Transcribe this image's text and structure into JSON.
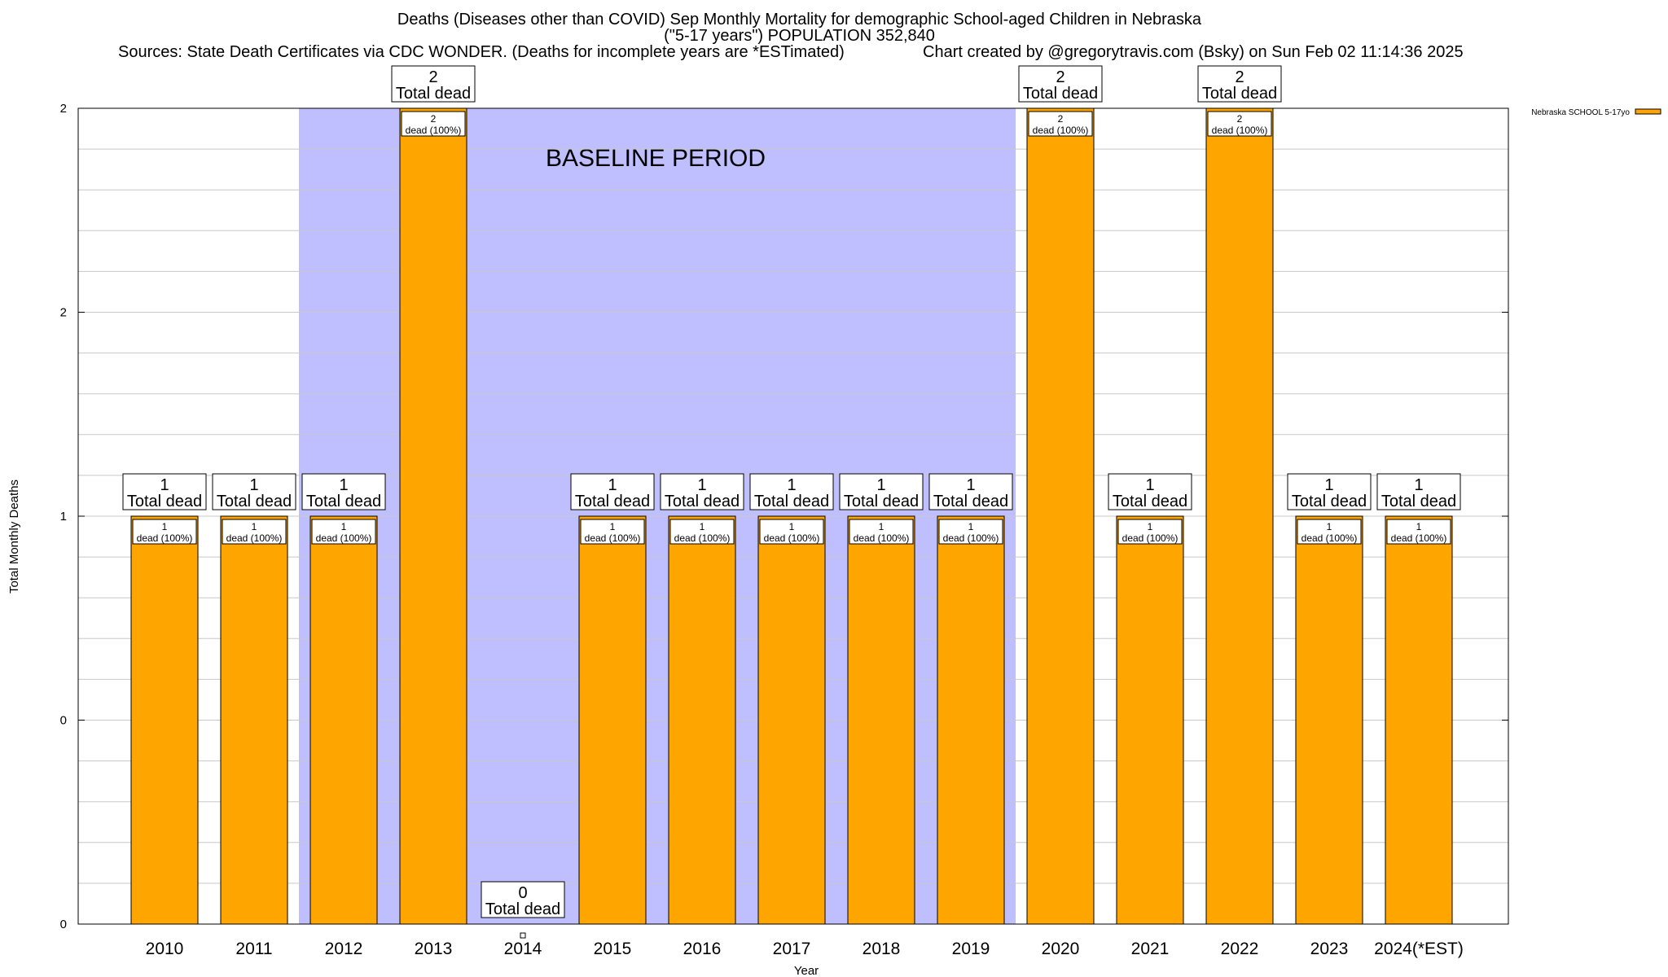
{
  "chart_data": {
    "type": "bar",
    "title": "Deaths (Diseases other than COVID) Sep Monthly Mortality for demographic School-aged Children in Nebraska",
    "subtitle": "(\"5-17 years\") POPULATION 352,840",
    "sources": "Sources: State Death Certificates via CDC WONDER. (Deaths for incomplete years are *ESTimated)",
    "credit": "Chart created by @gregorytravis.com (Bsky) on Sun Feb 02 11:14:36 2025",
    "xlabel": "Year",
    "ylabel": "Total Monthly Deaths",
    "categories": [
      "2010",
      "2011",
      "2012",
      "2013",
      "2014",
      "2015",
      "2016",
      "2017",
      "2018",
      "2019",
      "2020",
      "2021",
      "2022",
      "2023",
      "2024(*EST)"
    ],
    "series": [
      {
        "name": "Nebraska SCHOOL 5-17yo",
        "values": [
          1,
          1,
          1,
          2,
          0,
          1,
          1,
          1,
          1,
          1,
          2,
          1,
          2,
          1,
          1
        ],
        "color": "#ffa500"
      }
    ],
    "ylim": [
      0,
      2
    ],
    "y_tick_labels": [
      "0",
      "0",
      "1",
      "2",
      "2"
    ],
    "total_label_suffix": "Total dead",
    "bar_label_suffix": "dead (100%)",
    "baseline": {
      "label": "BASELINE PERIOD",
      "from": "2012",
      "to": "2019",
      "color": "#bfbfff"
    },
    "grid": true,
    "legend_position": "top-right"
  }
}
